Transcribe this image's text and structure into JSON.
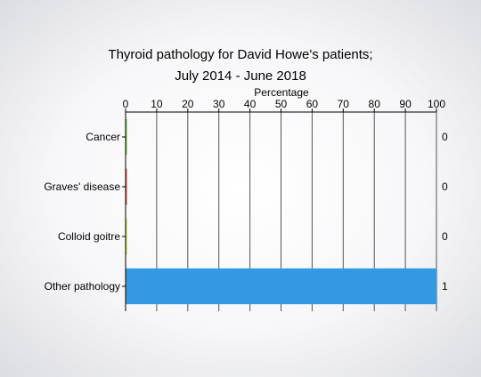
{
  "chart_data": {
    "type": "bar",
    "orientation": "horizontal",
    "title_line1": "Thyroid pathology for David Howe's patients;",
    "title_line2": "July 2014 - June 2018",
    "xlabel": "Percentage",
    "xlim": [
      0,
      100
    ],
    "x_ticks": [
      "0",
      "10",
      "20",
      "30",
      "40",
      "50",
      "60",
      "70",
      "80",
      "90",
      "100"
    ],
    "categories": [
      "Cancer",
      "Graves' disease",
      "Colloid goitre",
      "Other pathology"
    ],
    "values": [
      0,
      0,
      0,
      100
    ],
    "counts": [
      "0",
      "0",
      "0",
      "1"
    ],
    "bar_colors": [
      "#7cc242",
      "#d9534f",
      "#c6d84a",
      "#3399e0"
    ],
    "grid": true,
    "axis_position": "top"
  }
}
